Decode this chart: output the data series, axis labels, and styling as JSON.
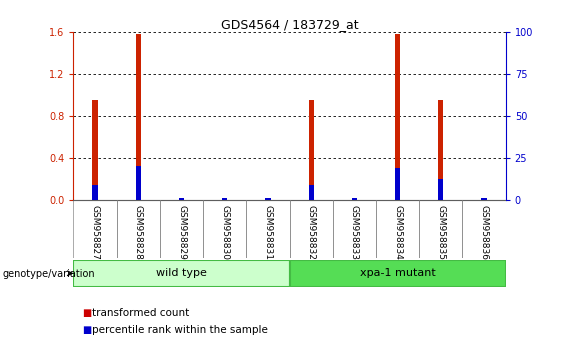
{
  "title": "GDS4564 / 183729_at",
  "samples": [
    "GSM958827",
    "GSM958828",
    "GSM958829",
    "GSM958830",
    "GSM958831",
    "GSM958832",
    "GSM958833",
    "GSM958834",
    "GSM958835",
    "GSM958836"
  ],
  "red_values": [
    0.95,
    1.58,
    0.02,
    0.02,
    0.02,
    0.95,
    0.02,
    1.58,
    0.95,
    0.02
  ],
  "blue_values": [
    8.75,
    20.0,
    1.25,
    1.25,
    1.25,
    8.75,
    1.25,
    18.75,
    12.5,
    1.25
  ],
  "ylim_left": [
    0,
    1.6
  ],
  "ylim_right": [
    0,
    100
  ],
  "yticks_left": [
    0,
    0.4,
    0.8,
    1.2,
    1.6
  ],
  "yticks_right": [
    0,
    25,
    50,
    75,
    100
  ],
  "groups": [
    {
      "label": "wild type",
      "start": 0,
      "end": 5,
      "color": "#ccffcc",
      "edge": "#44bb44"
    },
    {
      "label": "xpa-1 mutant",
      "start": 5,
      "end": 10,
      "color": "#55dd55",
      "edge": "#44bb44"
    }
  ],
  "group_label": "genotype/variation",
  "legend": [
    {
      "label": "transformed count",
      "color": "#cc0000"
    },
    {
      "label": "percentile rank within the sample",
      "color": "#0000cc"
    }
  ],
  "left_tick_color": "#cc2200",
  "right_tick_color": "#0000cc",
  "bar_color_red": "#cc2200",
  "bar_color_blue": "#0000cc",
  "red_bar_width": 0.12,
  "blue_bar_width": 0.12,
  "bg_color": "#ffffff",
  "label_area_color": "#cccccc",
  "title_fontsize": 9,
  "tick_fontsize": 7,
  "label_fontsize": 6.5,
  "group_fontsize": 8,
  "legend_fontsize": 7.5
}
